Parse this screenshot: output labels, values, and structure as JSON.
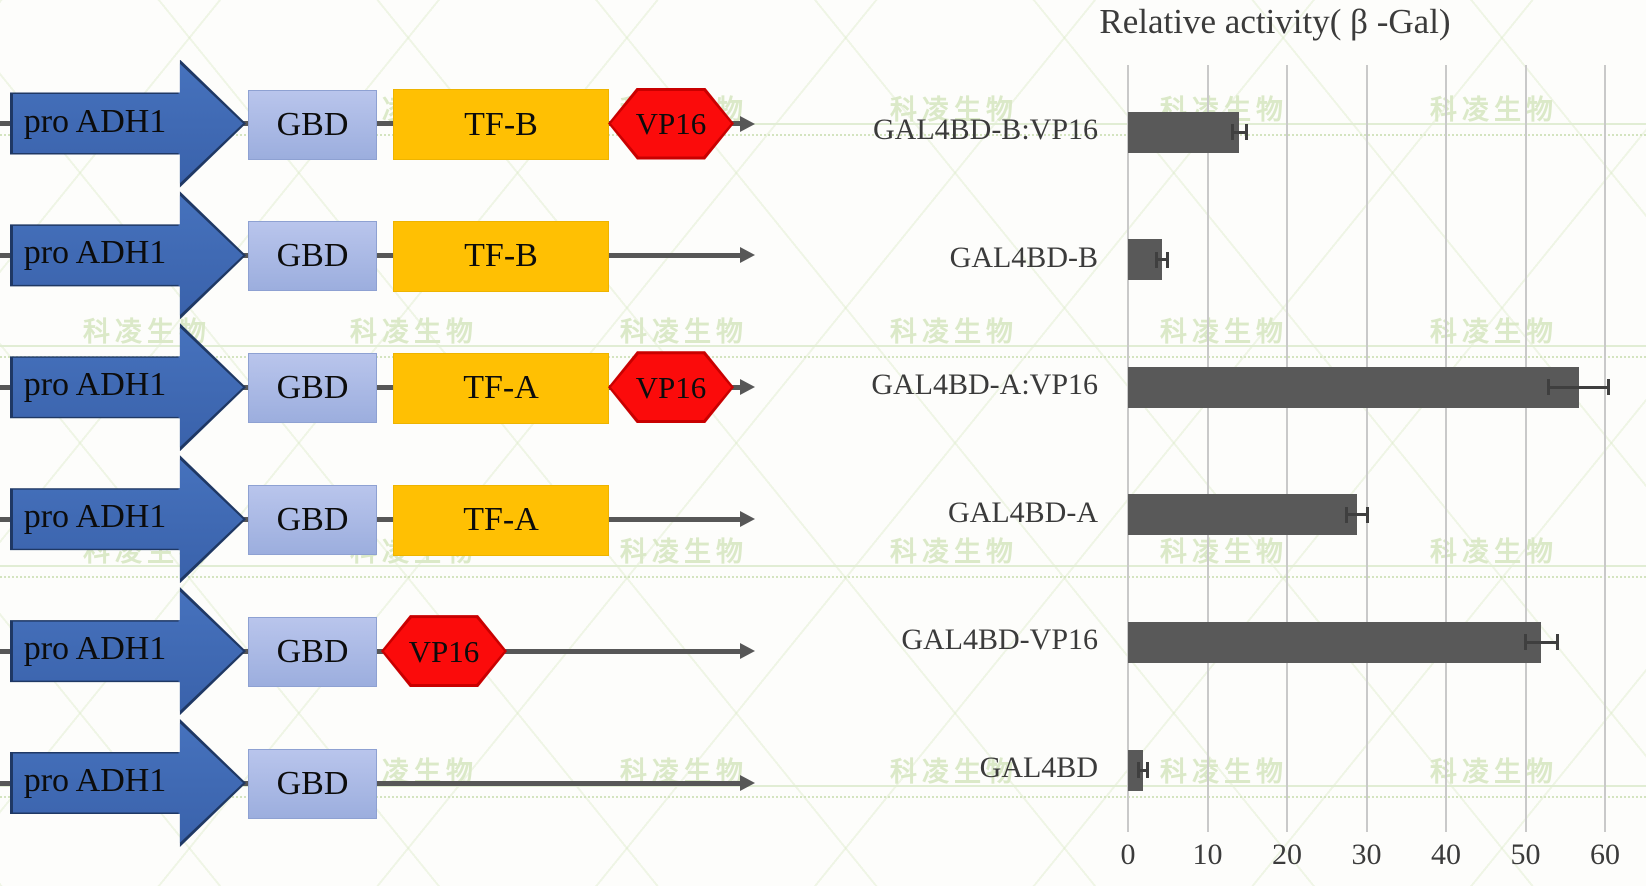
{
  "watermark": {
    "text": "科凌生物",
    "color": "#dbe9c8"
  },
  "diagram": {
    "labels": {
      "promoter": "pro ADH1",
      "gbd": "GBD",
      "tf_b": "TF-B",
      "tf_a": "TF-A",
      "vp16": "VP16"
    },
    "rows": [
      {
        "construct": "GAL4BD-B:VP16",
        "elements": [
          "pro ADH1",
          "GBD",
          "TF-B",
          "VP16"
        ]
      },
      {
        "construct": "GAL4BD-B",
        "elements": [
          "pro ADH1",
          "GBD",
          "TF-B"
        ]
      },
      {
        "construct": "GAL4BD-A:VP16",
        "elements": [
          "pro ADH1",
          "GBD",
          "TF-A",
          "VP16"
        ]
      },
      {
        "construct": "GAL4BD-A",
        "elements": [
          "pro ADH1",
          "GBD",
          "TF-A"
        ]
      },
      {
        "construct": "GAL4BD-VP16",
        "elements": [
          "pro ADH1",
          "GBD",
          "VP16"
        ]
      },
      {
        "construct": "GAL4BD",
        "elements": [
          "pro ADH1",
          "GBD"
        ]
      }
    ],
    "colors": {
      "promoter_fill": "#3e68b2",
      "promoter_border": "#1f3864",
      "gbd_fill": "#a9b7e3",
      "tf_fill": "#ffc003",
      "vp16_fill": "#fb0b0b",
      "vp16_border": "#c90000",
      "backbone_line": "#575757"
    }
  },
  "chart": {
    "title": "Relative activity( β -Gal)"
  },
  "chart_data": {
    "type": "bar",
    "orientation": "horizontal",
    "title": "Relative activity( β -Gal)",
    "categories": [
      "GAL4BD-B:VP16",
      "GAL4BD-B",
      "GAL4BD-A:VP16",
      "GAL4BD-A",
      "GAL4BD-VP16",
      "GAL4BD"
    ],
    "values": [
      14,
      4.3,
      56.7,
      28.8,
      52,
      1.9
    ],
    "errors": [
      0.8,
      0.6,
      3.7,
      1.2,
      1.9,
      0.5
    ],
    "xlim": [
      0,
      60
    ],
    "x_ticks": [
      0,
      10,
      20,
      30,
      40,
      50,
      60
    ],
    "grid": "vertical-gridlines-on",
    "legend": "none",
    "bar_color": "#595959",
    "grid_color": "#c9c9c9",
    "text_color": "#3b3b3b"
  }
}
